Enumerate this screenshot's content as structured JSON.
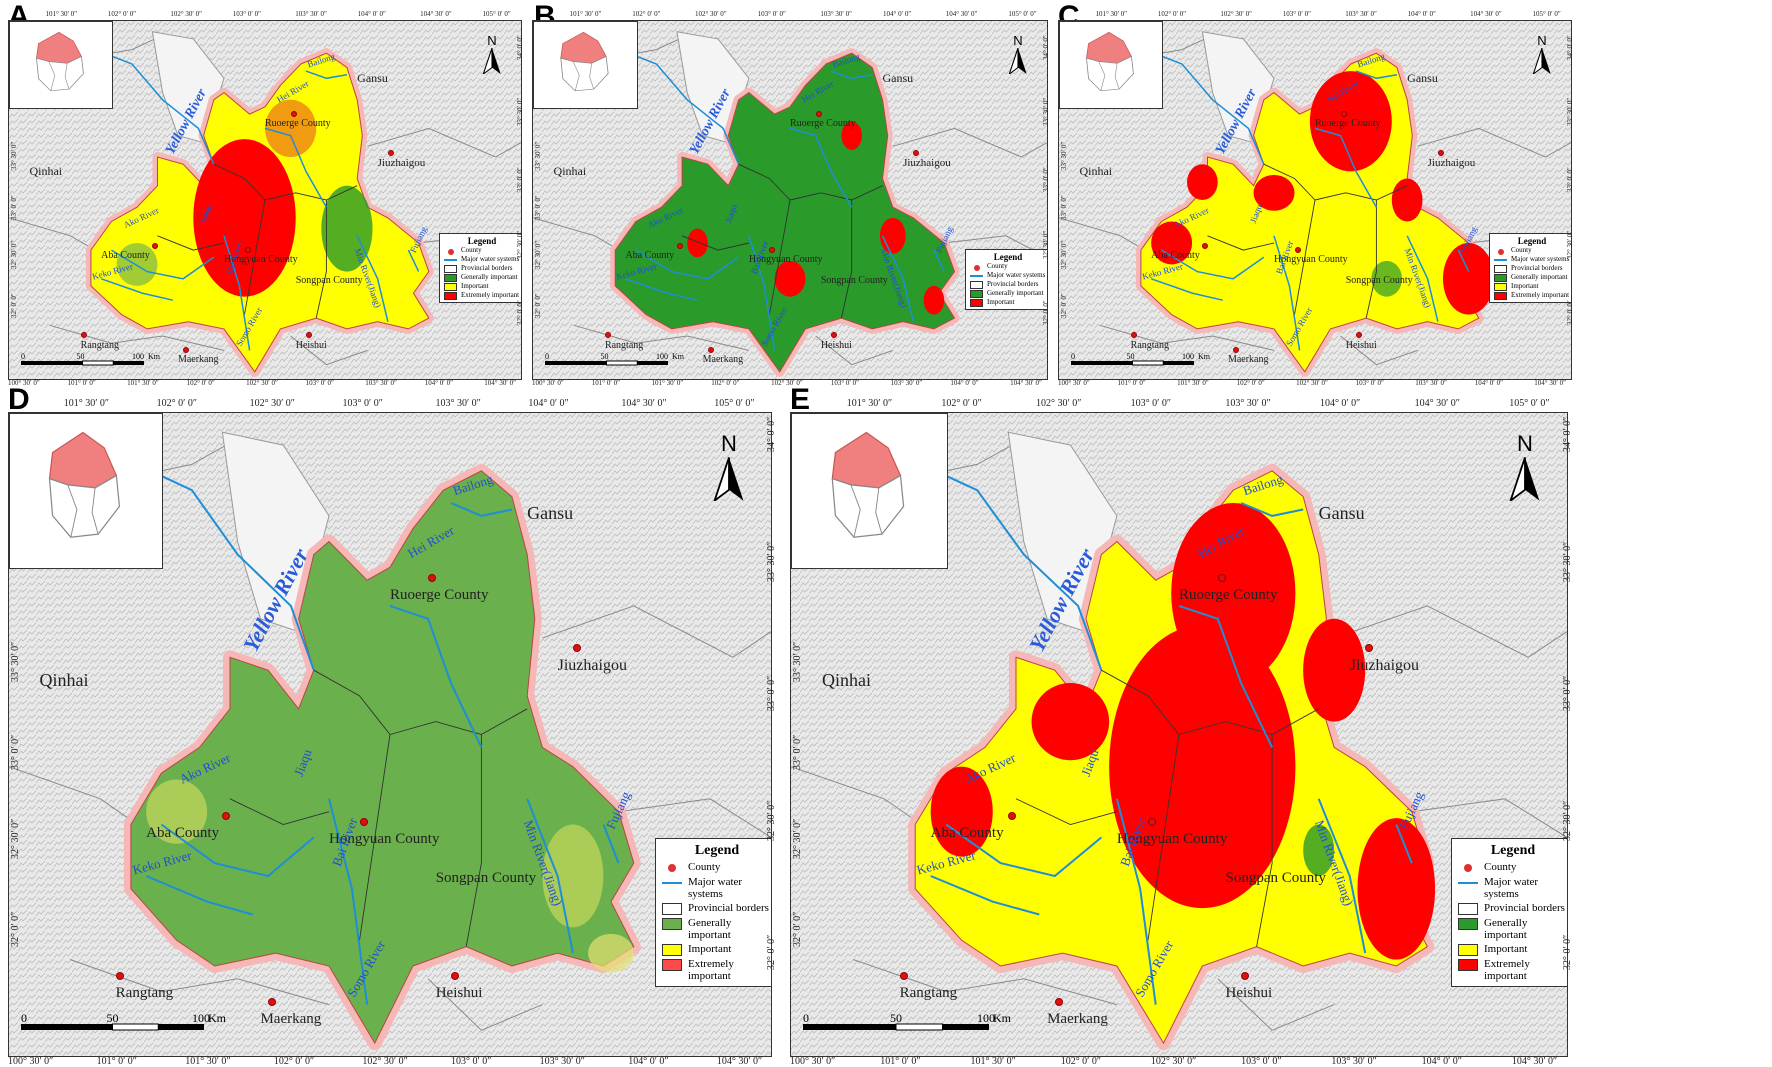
{
  "panels": [
    {
      "letter": "A",
      "legend": [
        "County",
        "Major water systems",
        "Provincial borders",
        "Generally important",
        "Important",
        "Extremely important"
      ],
      "legend_colors": [
        "#e03030",
        "#1e8fd6",
        "#ffffff",
        "#2a9a2a",
        "#ffff00",
        "#ff0000"
      ]
    },
    {
      "letter": "B",
      "legend": [
        "County",
        "Major water systems",
        "Provincial borders",
        "Generally important",
        "Important"
      ],
      "legend_colors": [
        "#e03030",
        "#1e8fd6",
        "#ffffff",
        "#2a9a2a",
        "#ff0000"
      ]
    },
    {
      "letter": "C",
      "legend": [
        "County",
        "Major water systems",
        "Provincial borders",
        "Generally important",
        "Important",
        "Extremely important"
      ],
      "legend_colors": [
        "#e03030",
        "#1e8fd6",
        "#ffffff",
        "#2a9a2a",
        "#ffff00",
        "#ff0000"
      ]
    },
    {
      "letter": "D",
      "legend": [
        "County",
        "Major water systems",
        "Provincial borders",
        "Generally important",
        "Important",
        "Extremely important"
      ],
      "legend_colors": [
        "#e03030",
        "#1e8fd6",
        "#ffffff",
        "#6ab04c",
        "#ffff00",
        "#ff4a4a"
      ]
    },
    {
      "letter": "E",
      "legend": [
        "County",
        "Major water systems",
        "Provincial borders",
        "Generally important",
        "Important",
        "Extremely important"
      ],
      "legend_colors": [
        "#e03030",
        "#1e8fd6",
        "#ffffff",
        "#2a9a2a",
        "#ffff00",
        "#ff0000"
      ]
    }
  ],
  "legend_title": "Legend",
  "north_label": "N",
  "places": {
    "gansu": "Gansu",
    "qinhai": "Qinhai",
    "jiuzhaigou": "Jiuzhaigou",
    "rangtang": "Rangtang",
    "maerkang": "Maerkang",
    "heishui": "Heishui",
    "ruoerge": "Ruoerge County",
    "aba": "Aba County",
    "hongyuan": "Hongyuan County",
    "songpan": "Songpan County"
  },
  "rivers": {
    "yellow": "Yellow River",
    "bailong": "Bailong",
    "hei": "Hei River",
    "ako": "Ako River",
    "keko": "Keko River",
    "jiaqu": "Jiaqu",
    "bai": "Bai River",
    "somo": "Somo River",
    "minjiang": "Min River(Jiang)",
    "fujiang": "Fujiang"
  },
  "scale": {
    "zero": "0",
    "fifty": "50",
    "hundred": "100",
    "unit": "Km"
  },
  "top_ticks": [
    "101° 30′ 0″",
    "102° 0′ 0″",
    "102° 30′ 0″",
    "103° 0′ 0″",
    "103° 30′ 0″",
    "104° 0′ 0″",
    "104° 30′ 0″",
    "105° 0′ 0″"
  ],
  "bottom_ticks": [
    "100° 30′ 0″",
    "101° 0′ 0″",
    "101° 30′ 0″",
    "102° 0′ 0″",
    "102° 30′ 0″",
    "103° 0′ 0″",
    "103° 30′ 0″",
    "104° 0′ 0″",
    "104° 30′ 0″"
  ],
  "right_ticks": [
    "34° 0′ 0″",
    "33° 30′ 0″",
    "33° 0′ 0″",
    "32° 30′ 0″",
    "32° 0′ 0″"
  ],
  "left_ticks": [
    "33° 30′ 0″",
    "33° 0′ 0″",
    "32° 30′ 0″",
    "32° 0′ 0″"
  ]
}
